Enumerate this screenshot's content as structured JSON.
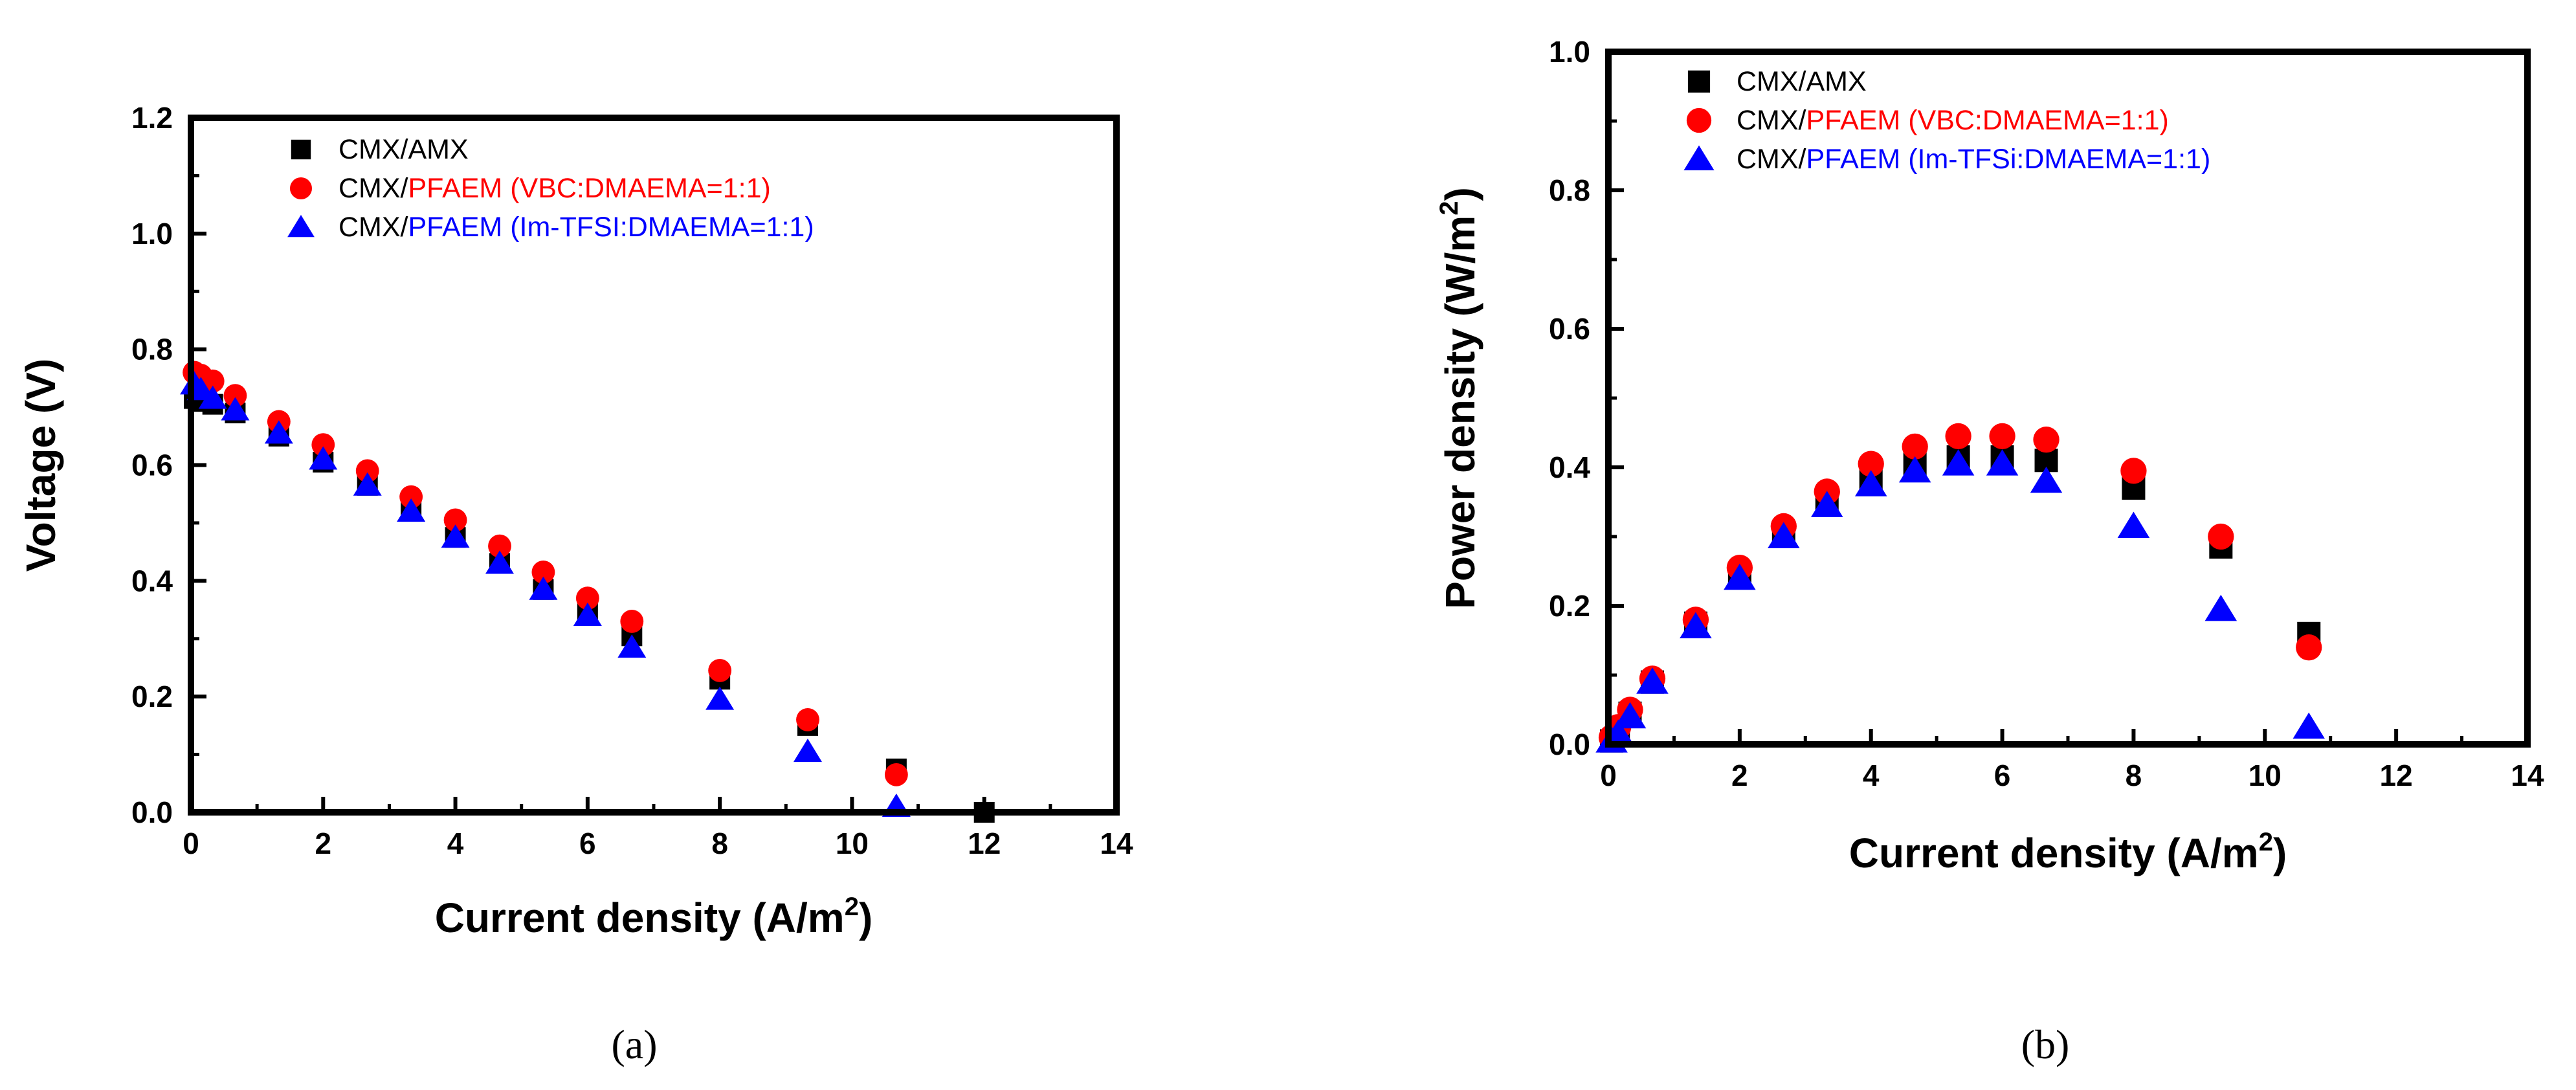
{
  "colors": {
    "black": "#000000",
    "red": "#ff0000",
    "blue": "#0000ff"
  },
  "chart_data": [
    {
      "type": "scatter",
      "caption": "(a)",
      "xlabel": "Current density (A/m",
      "xlabel_sup": "2",
      "xlabel_end": ")",
      "ylabel": "Voltage (V)",
      "xlim": [
        0,
        14
      ],
      "ylim": [
        0,
        1.2
      ],
      "xticks": [
        "0",
        "2",
        "4",
        "6",
        "8",
        "10",
        "12",
        "14"
      ],
      "yticks": [
        "0.0",
        "0.2",
        "0.4",
        "0.6",
        "0.8",
        "1.0",
        "1.2"
      ],
      "legend_position": "top-left",
      "series": [
        {
          "name": "CMX/AMX",
          "label_prefix": "CMX/",
          "label_rest": "AMX",
          "marker": "square",
          "color": "#000000",
          "label_color": "#000000",
          "points": [
            [
              0.05,
              0.715
            ],
            [
              0.15,
              0.71
            ],
            [
              0.33,
              0.705
            ],
            [
              0.67,
              0.69
            ],
            [
              1.33,
              0.65
            ],
            [
              2.0,
              0.605
            ],
            [
              2.67,
              0.565
            ],
            [
              3.33,
              0.52
            ],
            [
              4.0,
              0.475
            ],
            [
              4.67,
              0.43
            ],
            [
              5.33,
              0.385
            ],
            [
              6.0,
              0.345
            ],
            [
              6.67,
              0.305
            ],
            [
              8.0,
              0.23
            ],
            [
              9.33,
              0.15
            ],
            [
              10.67,
              0.075
            ],
            [
              12.0,
              0.0
            ]
          ]
        },
        {
          "name": "CMX/PFAEM (VBC:DMAEMA=1:1)",
          "label_prefix": "CMX/",
          "label_rest": "PFAEM (VBC:DMAEMA=1:1)",
          "marker": "circle",
          "color": "#ff0000",
          "label_color": "#ff0000",
          "points": [
            [
              0.05,
              0.76
            ],
            [
              0.15,
              0.755
            ],
            [
              0.33,
              0.745
            ],
            [
              0.67,
              0.72
            ],
            [
              1.33,
              0.675
            ],
            [
              2.0,
              0.635
            ],
            [
              2.67,
              0.59
            ],
            [
              3.33,
              0.545
            ],
            [
              4.0,
              0.505
            ],
            [
              4.67,
              0.46
            ],
            [
              5.33,
              0.415
            ],
            [
              6.0,
              0.37
            ],
            [
              6.67,
              0.33
            ],
            [
              8.0,
              0.245
            ],
            [
              9.33,
              0.16
            ],
            [
              10.67,
              0.065
            ]
          ]
        },
        {
          "name": "CMX/PFAEM (Im-TFSI:DMAEMA=1:1)",
          "label_prefix": "CMX/",
          "label_rest": "PFAEM (Im-TFSI:DMAEMA=1:1)",
          "marker": "triangle",
          "color": "#0000ff",
          "label_color": "#0000ff",
          "points": [
            [
              0.05,
              0.74
            ],
            [
              0.15,
              0.73
            ],
            [
              0.33,
              0.715
            ],
            [
              0.67,
              0.695
            ],
            [
              1.33,
              0.655
            ],
            [
              2.0,
              0.61
            ],
            [
              2.67,
              0.565
            ],
            [
              3.33,
              0.52
            ],
            [
              4.0,
              0.475
            ],
            [
              4.67,
              0.43
            ],
            [
              5.33,
              0.385
            ],
            [
              6.0,
              0.34
            ],
            [
              6.67,
              0.285
            ],
            [
              8.0,
              0.195
            ],
            [
              9.33,
              0.105
            ],
            [
              10.67,
              0.01
            ]
          ]
        }
      ]
    },
    {
      "type": "scatter",
      "caption": "(b)",
      "xlabel": "Current density (A/m",
      "xlabel_sup": "2",
      "xlabel_end": ")",
      "ylabel": "Power density (W/m",
      "ylabel_sup": "2",
      "ylabel_end": ")",
      "xlim": [
        0,
        14
      ],
      "ylim": [
        0,
        1.0
      ],
      "xticks": [
        "0",
        "2",
        "4",
        "6",
        "8",
        "10",
        "12",
        "14"
      ],
      "yticks": [
        "0.0",
        "0.2",
        "0.4",
        "0.6",
        "0.8",
        "1.0"
      ],
      "legend_position": "top-left",
      "series": [
        {
          "name": "CMX/AMX",
          "label_prefix": "CMX/AMX",
          "label_rest": "",
          "marker": "square",
          "color": "#000000",
          "label_color": "#000000",
          "points": [
            [
              0.05,
              0.005
            ],
            [
              0.15,
              0.02
            ],
            [
              0.33,
              0.045
            ],
            [
              0.67,
              0.09
            ],
            [
              1.33,
              0.175
            ],
            [
              2.0,
              0.245
            ],
            [
              2.67,
              0.305
            ],
            [
              3.33,
              0.35
            ],
            [
              4.0,
              0.385
            ],
            [
              4.67,
              0.405
            ],
            [
              5.33,
              0.415
            ],
            [
              6.0,
              0.415
            ],
            [
              6.67,
              0.41
            ],
            [
              8.0,
              0.37
            ],
            [
              9.33,
              0.285
            ],
            [
              10.67,
              0.16
            ]
          ]
        },
        {
          "name": "CMX/PFAEM (VBC:DMAEMA=1:1)",
          "label_prefix": "CMX/",
          "label_rest": "PFAEM (VBC:DMAEMA=1:1)",
          "marker": "circle",
          "color": "#ff0000",
          "label_color": "#ff0000",
          "points": [
            [
              0.05,
              0.01
            ],
            [
              0.15,
              0.025
            ],
            [
              0.33,
              0.05
            ],
            [
              0.67,
              0.095
            ],
            [
              1.33,
              0.18
            ],
            [
              2.0,
              0.255
            ],
            [
              2.67,
              0.315
            ],
            [
              3.33,
              0.365
            ],
            [
              4.0,
              0.405
            ],
            [
              4.67,
              0.43
            ],
            [
              5.33,
              0.445
            ],
            [
              6.0,
              0.445
            ],
            [
              6.67,
              0.44
            ],
            [
              8.0,
              0.395
            ],
            [
              9.33,
              0.3
            ],
            [
              10.67,
              0.14
            ]
          ]
        },
        {
          "name": "CMX/PFAEM (Im-TFSi:DMAEMA=1:1)",
          "label_prefix": "CMX/",
          "label_rest": "PFAEM (Im-TFSi:DMAEMA=1:1)",
          "marker": "triangle",
          "color": "#0000ff",
          "label_color": "#0000ff",
          "points": [
            [
              0.05,
              0.005
            ],
            [
              0.15,
              0.015
            ],
            [
              0.33,
              0.04
            ],
            [
              0.67,
              0.09
            ],
            [
              1.33,
              0.17
            ],
            [
              2.0,
              0.24
            ],
            [
              2.67,
              0.3
            ],
            [
              3.33,
              0.345
            ],
            [
              4.0,
              0.375
            ],
            [
              4.67,
              0.395
            ],
            [
              5.33,
              0.405
            ],
            [
              6.0,
              0.405
            ],
            [
              6.67,
              0.38
            ],
            [
              8.0,
              0.315
            ],
            [
              9.33,
              0.195
            ],
            [
              10.67,
              0.025
            ]
          ]
        }
      ]
    }
  ]
}
